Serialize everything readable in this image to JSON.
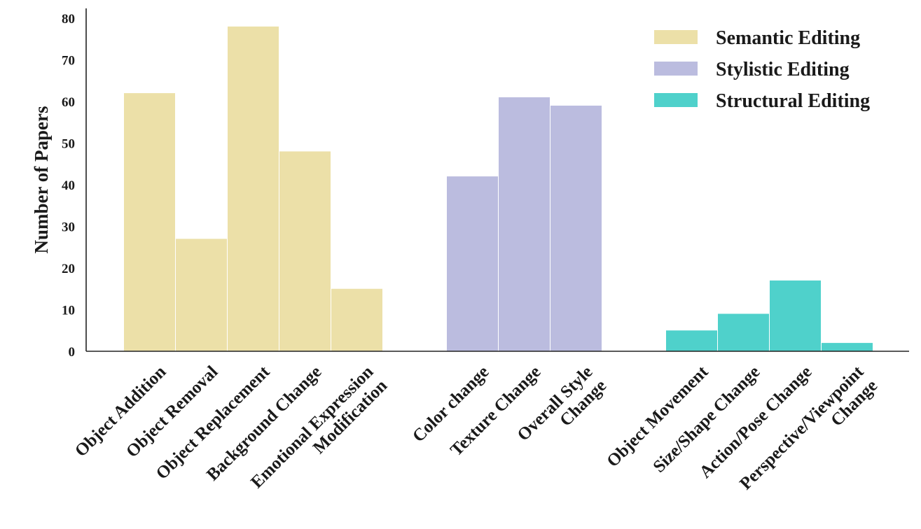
{
  "chart_data": {
    "type": "bar",
    "title": "",
    "xlabel": "",
    "ylabel": "Number of Papers",
    "ylim": [
      0,
      80
    ],
    "yticks": [
      0,
      10,
      20,
      30,
      40,
      50,
      60,
      70,
      80
    ],
    "grid": false,
    "legend_position": "top-right",
    "series": [
      {
        "name": "Semantic Editing",
        "color": "#ece0a8",
        "categories": [
          "Object Addition",
          "Object Removal",
          "Object Replacement",
          "Background Change",
          "Emotional Expression\nModification"
        ],
        "values": [
          62,
          27,
          78,
          48,
          15
        ]
      },
      {
        "name": "Stylistic Editing",
        "color": "#bbbcdf",
        "categories": [
          "Color change",
          "Texture Change",
          "Overall Style\nChange"
        ],
        "values": [
          42,
          61,
          59
        ]
      },
      {
        "name": "Structural Editing",
        "color": "#4fd1cb",
        "categories": [
          "Object Movement",
          "Size/Shape Change",
          "Action/Pose Change",
          "Perspective/Viewpoint\nChange"
        ],
        "values": [
          5,
          9,
          17,
          2
        ]
      }
    ]
  }
}
